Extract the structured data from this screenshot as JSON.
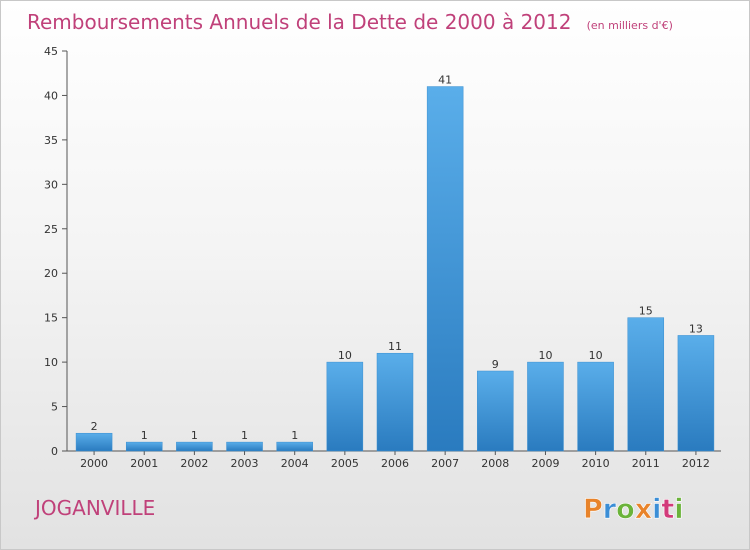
{
  "header": {
    "title": "Remboursements Annuels de la Dette de 2000 à 2012",
    "unit": "(en milliers d'€)"
  },
  "footer": {
    "town": "JOGANVILLE",
    "logo_text": "Proxiti",
    "logo_colors": [
      "#e8832a",
      "#3b8ed6",
      "#6bb33a",
      "#e8832a",
      "#3b8ed6",
      "#d23a7a",
      "#6bb33a"
    ]
  },
  "colors": {
    "bar_top": "#5aaeea",
    "bar_bottom": "#2a7bbf",
    "accent": "#c0417a"
  },
  "chart_data": {
    "type": "bar",
    "title": "Remboursements Annuels de la Dette de 2000 à 2012",
    "unit": "(en milliers d'€)",
    "categories": [
      "2000",
      "2001",
      "2002",
      "2003",
      "2004",
      "2005",
      "2006",
      "2007",
      "2008",
      "2009",
      "2010",
      "2011",
      "2012"
    ],
    "values": [
      2,
      1,
      1,
      1,
      1,
      10,
      11,
      41,
      9,
      10,
      10,
      15,
      13
    ],
    "ylim": [
      0,
      45
    ],
    "yticks": [
      0,
      5,
      10,
      15,
      20,
      25,
      30,
      35,
      40,
      45
    ],
    "grid": false,
    "legend": "none"
  }
}
